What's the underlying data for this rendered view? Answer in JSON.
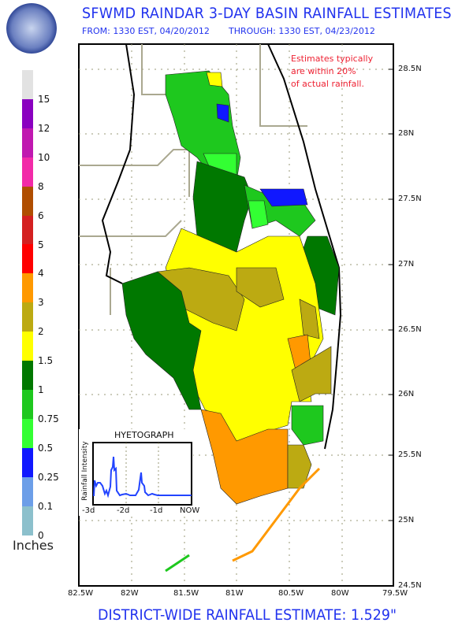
{
  "header": {
    "title": "SFWMD RAINDAR 3-DAY BASIN RAINFALL ESTIMATES",
    "from": "FROM: 1330 EST, 04/20/2012",
    "through": "THROUGH: 1330 EST, 04/23/2012",
    "logo_text": "SOUTH FLORIDA WATER MANAGEMENT DISTRICT"
  },
  "note": [
    "Estimates typically",
    "are within 20%",
    "of actual rainfall."
  ],
  "legend": {
    "unit": "Inches",
    "labels": [
      "15",
      "12",
      "10",
      "8",
      "6",
      "5",
      "4",
      "3",
      "2",
      "1.5",
      "1",
      "0.75",
      "0.5",
      "0.25",
      "0.1",
      "0"
    ],
    "colors": [
      "#e2e2e2",
      "#8a00c0",
      "#c018b0",
      "#f22aa8",
      "#b04e00",
      "#d42020",
      "#ff0000",
      "#ff9900",
      "#bcaa12",
      "#ffff00",
      "#007800",
      "#1ec81e",
      "#33ff33",
      "#1018ff",
      "#6c9ee8",
      "#8cc0cc"
    ]
  },
  "axes": {
    "lat": [
      "28.5N",
      "28N",
      "27.5N",
      "27N",
      "26.5N",
      "26N",
      "25.5N",
      "25N",
      "24.5N"
    ],
    "lon": [
      "82.5W",
      "82W",
      "81.5W",
      "81W",
      "80.5W",
      "80W",
      "79.5W"
    ]
  },
  "hyetograph": {
    "title": "HYETOGRAPH",
    "ylabel": "Rainfall Intensity",
    "xticks": [
      "-3d",
      "-2d",
      "-1d",
      "NOW"
    ]
  },
  "footer": "DISTRICT-WIDE RAINFALL ESTIMATE: 1.529\""
}
